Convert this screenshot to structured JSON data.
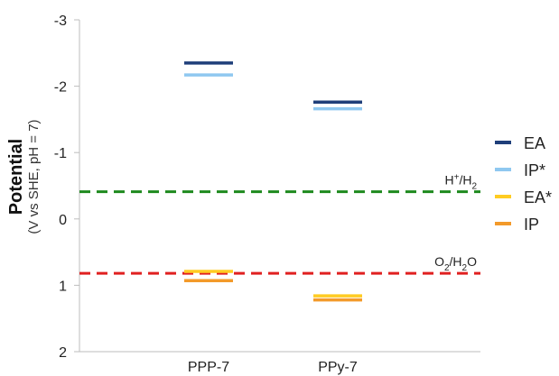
{
  "chart_data": {
    "type": "line",
    "ylabel": "Potential",
    "ylabel_sub": "(V vs SHE, pH = 7)",
    "ylim": [
      -3,
      2
    ],
    "y_inverted": true,
    "yticks": [
      {
        "value": -3,
        "label": "-3"
      },
      {
        "value": -2,
        "label": "-2"
      },
      {
        "value": -1,
        "label": "-1"
      },
      {
        "value": 0,
        "label": "0"
      },
      {
        "value": 1,
        "label": "1"
      },
      {
        "value": 2,
        "label": "2"
      }
    ],
    "categories": [
      "PPP-7",
      "PPy-7"
    ],
    "series": [
      {
        "name": "EA",
        "color": "#1f3f7a",
        "values": [
          -2.35,
          -1.76
        ]
      },
      {
        "name": "IP*",
        "color": "#8fc8f0",
        "values": [
          -2.17,
          -1.66
        ]
      },
      {
        "name": "EA*",
        "color": "#ffcc22",
        "values": [
          0.79,
          1.16
        ]
      },
      {
        "name": "IP",
        "color": "#f39a2a",
        "values": [
          0.93,
          1.22
        ]
      }
    ],
    "reference_lines": [
      {
        "label_main": "H",
        "label_sup": "+",
        "label_sep": "/H",
        "label_sub": "2",
        "value": -0.41,
        "color": "#1e8a1e"
      },
      {
        "label_main": "O",
        "label_sub1": "2",
        "label_sep": "/H",
        "label_sub": "2",
        "label_tail": "O",
        "value": 0.82,
        "color": "#e02020"
      }
    ],
    "legend_position": "right",
    "grid": false
  }
}
